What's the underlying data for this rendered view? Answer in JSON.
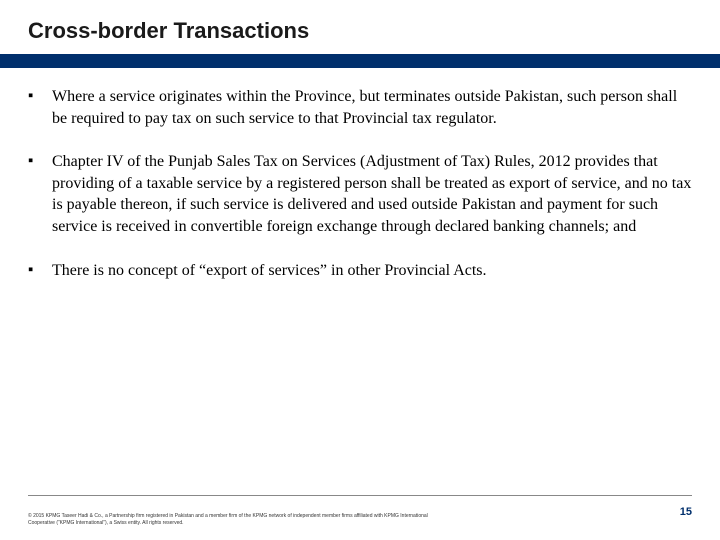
{
  "slide": {
    "title": "Cross-border Transactions",
    "bar_color": "#002f6c",
    "background_color": "#ffffff",
    "bullets": [
      "Where a service originates within the Province, but terminates outside Pakistan, such person shall be required to pay tax on such service to that Provincial tax regulator.",
      "Chapter IV of the Punjab Sales Tax on Services (Adjustment of Tax) Rules, 2012 provides that providing of a taxable service by a registered person shall be treated as export of service, and no tax is payable thereon, if such service is delivered and used outside Pakistan and payment for such service is received in convertible foreign exchange through declared banking channels; and",
      "There is no concept of “export of services” in other Provincial Acts."
    ],
    "copyright": "© 2015 KPMG Taseer Hadi & Co., a Partnership firm registered in Pakistan and a member firm of the KPMG network of independent member firms affiliated with KPMG International Cooperative (“KPMG International”), a Swiss entity. All rights reserved.",
    "page_number": "15"
  }
}
